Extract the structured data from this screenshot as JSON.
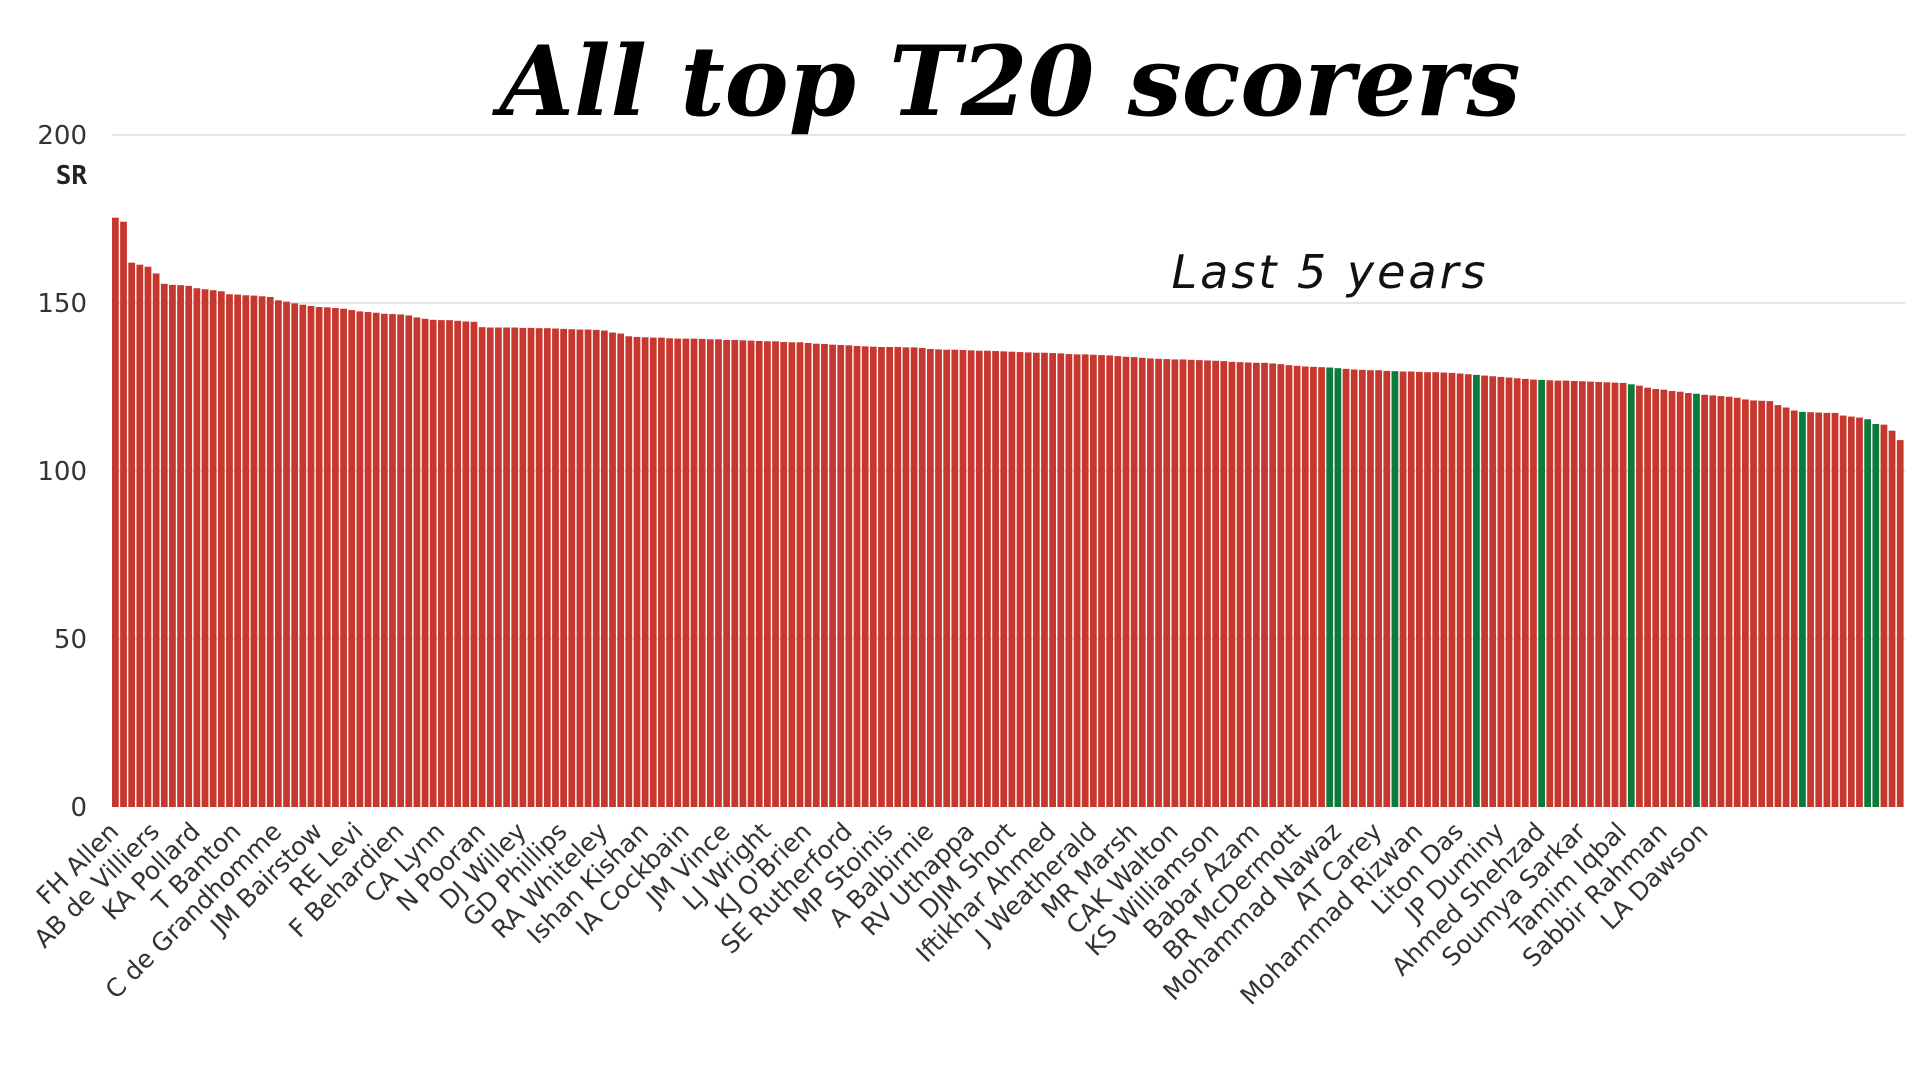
{
  "chart_data": {
    "type": "bar",
    "title": "All top T20 scorers",
    "subtitle": "Last 5 years",
    "ylabel": "SR",
    "xlabel": "",
    "ylim": [
      0,
      200
    ],
    "yticks": [
      0,
      50,
      100,
      150,
      200
    ],
    "grid": true,
    "colors": {
      "default": "#C8372D",
      "highlight": "#0B7A3B"
    },
    "values": [
      175.4,
      174.2,
      162,
      161.4,
      160.8,
      158.8,
      155.7,
      155.4,
      155.3,
      155.1,
      154.4,
      154.1,
      153.8,
      153.5,
      152.6,
      152.5,
      152.3,
      152.2,
      152,
      151.8,
      150.8,
      150.4,
      149.9,
      149.5,
      149.1,
      148.8,
      148.7,
      148.5,
      148.3,
      147.9,
      147.5,
      147.3,
      147.1,
      146.8,
      146.7,
      146.6,
      146.3,
      145.7,
      145.3,
      145,
      144.9,
      144.9,
      144.7,
      144.5,
      144.4,
      142.8,
      142.7,
      142.7,
      142.7,
      142.7,
      142.6,
      142.6,
      142.5,
      142.5,
      142.4,
      142.3,
      142.2,
      142.1,
      142.1,
      142,
      141.8,
      141.2,
      140.9,
      140.1,
      139.9,
      139.8,
      139.7,
      139.7,
      139.5,
      139.4,
      139.4,
      139.4,
      139.3,
      139.2,
      139.2,
      139,
      139,
      138.9,
      138.8,
      138.7,
      138.6,
      138.6,
      138.4,
      138.3,
      138.3,
      138.1,
      137.9,
      137.8,
      137.6,
      137.5,
      137.4,
      137.2,
      137.1,
      137,
      136.9,
      136.9,
      136.9,
      136.8,
      136.8,
      136.6,
      136.3,
      136.2,
      136.1,
      136.1,
      136,
      135.9,
      135.8,
      135.8,
      135.7,
      135.6,
      135.5,
      135.4,
      135.3,
      135.2,
      135.2,
      135.1,
      135,
      134.8,
      134.7,
      134.7,
      134.6,
      134.5,
      134.4,
      134.2,
      134,
      133.9,
      133.7,
      133.5,
      133.4,
      133.3,
      133.2,
      133.2,
      133.1,
      133,
      132.9,
      132.8,
      132.7,
      132.5,
      132.4,
      132.3,
      132.2,
      132.2,
      132,
      131.8,
      131.5,
      131.3,
      131.1,
      131,
      130.9,
      130.8,
      130.6,
      130.4,
      130.2,
      130.1,
      130,
      130,
      129.8,
      129.7,
      129.6,
      129.6,
      129.5,
      129.4,
      129.4,
      129.3,
      129.2,
      129,
      128.8,
      128.6,
      128.4,
      128.2,
      128,
      127.8,
      127.6,
      127.4,
      127.2,
      127.1,
      127,
      126.9,
      126.9,
      126.8,
      126.7,
      126.6,
      126.5,
      126.4,
      126.3,
      126.2,
      125.8,
      125.4,
      124.8,
      124.4,
      124.2,
      123.8,
      123.6,
      123.2,
      123,
      122.7,
      122.5,
      122.3,
      122.1,
      121.8,
      121.3,
      121,
      120.9,
      120.8,
      119.6,
      118.9,
      118,
      117.6,
      117.5,
      117.4,
      117.3,
      117.3,
      116.5,
      116.2,
      115.9,
      115.4,
      114,
      113.8,
      112,
      109.2
    ],
    "highlighted_indices": [
      149,
      150,
      157,
      167,
      175,
      186,
      194,
      207,
      215,
      216,
      221,
      222,
      223,
      227,
      228,
      229
    ],
    "tick_labels": [
      {
        "index": 0,
        "label": "FH Allen"
      },
      {
        "index": 5,
        "label": "AB de Villiers"
      },
      {
        "index": 10,
        "label": "KA Pollard"
      },
      {
        "index": 15,
        "label": "T Banton"
      },
      {
        "index": 20,
        "label": "C de Grandhomme"
      },
      {
        "index": 25,
        "label": "JM Bairstow"
      },
      {
        "index": 30,
        "label": "RE Levi"
      },
      {
        "index": 35,
        "label": "F Behardien"
      },
      {
        "index": 40,
        "label": "CA Lynn"
      },
      {
        "index": 45,
        "label": "N Pooran"
      },
      {
        "index": 50,
        "label": "DJ Willey"
      },
      {
        "index": 55,
        "label": "GD Phillips"
      },
      {
        "index": 60,
        "label": "RA Whiteley"
      },
      {
        "index": 65,
        "label": "Ishan Kishan"
      },
      {
        "index": 70,
        "label": "IA Cockbain"
      },
      {
        "index": 75,
        "label": "JM Vince"
      },
      {
        "index": 80,
        "label": "LJ Wright"
      },
      {
        "index": 85,
        "label": "KJ O'Brien"
      },
      {
        "index": 90,
        "label": "SE Rutherford"
      },
      {
        "index": 95,
        "label": "MP Stoinis"
      },
      {
        "index": 100,
        "label": "A Balbirnie"
      },
      {
        "index": 105,
        "label": "RV Uthappa"
      },
      {
        "index": 110,
        "label": "DJM Short"
      },
      {
        "index": 115,
        "label": "Iftikhar Ahmed"
      },
      {
        "index": 120,
        "label": "J Weatherald"
      },
      {
        "index": 125,
        "label": "MR Marsh"
      },
      {
        "index": 130,
        "label": "CAK Walton"
      },
      {
        "index": 135,
        "label": "KS Williamson"
      },
      {
        "index": 140,
        "label": "Babar Azam"
      },
      {
        "index": 145,
        "label": "BR McDermott"
      },
      {
        "index": 150,
        "label": "Mohammad Nawaz"
      },
      {
        "index": 155,
        "label": "AT Carey"
      },
      {
        "index": 160,
        "label": "Mohammad Rizwan"
      },
      {
        "index": 165,
        "label": "Liton Das"
      },
      {
        "index": 170,
        "label": "JP Duminy"
      },
      {
        "index": 175,
        "label": "Ahmed Shehzad"
      },
      {
        "index": 180,
        "label": "Soumya Sarkar"
      },
      {
        "index": 185,
        "label": "Tamim Iqbal"
      },
      {
        "index": 190,
        "label": "Sabbir Rahman"
      },
      {
        "index": 195,
        "label": "LA Dawson"
      }
    ]
  }
}
